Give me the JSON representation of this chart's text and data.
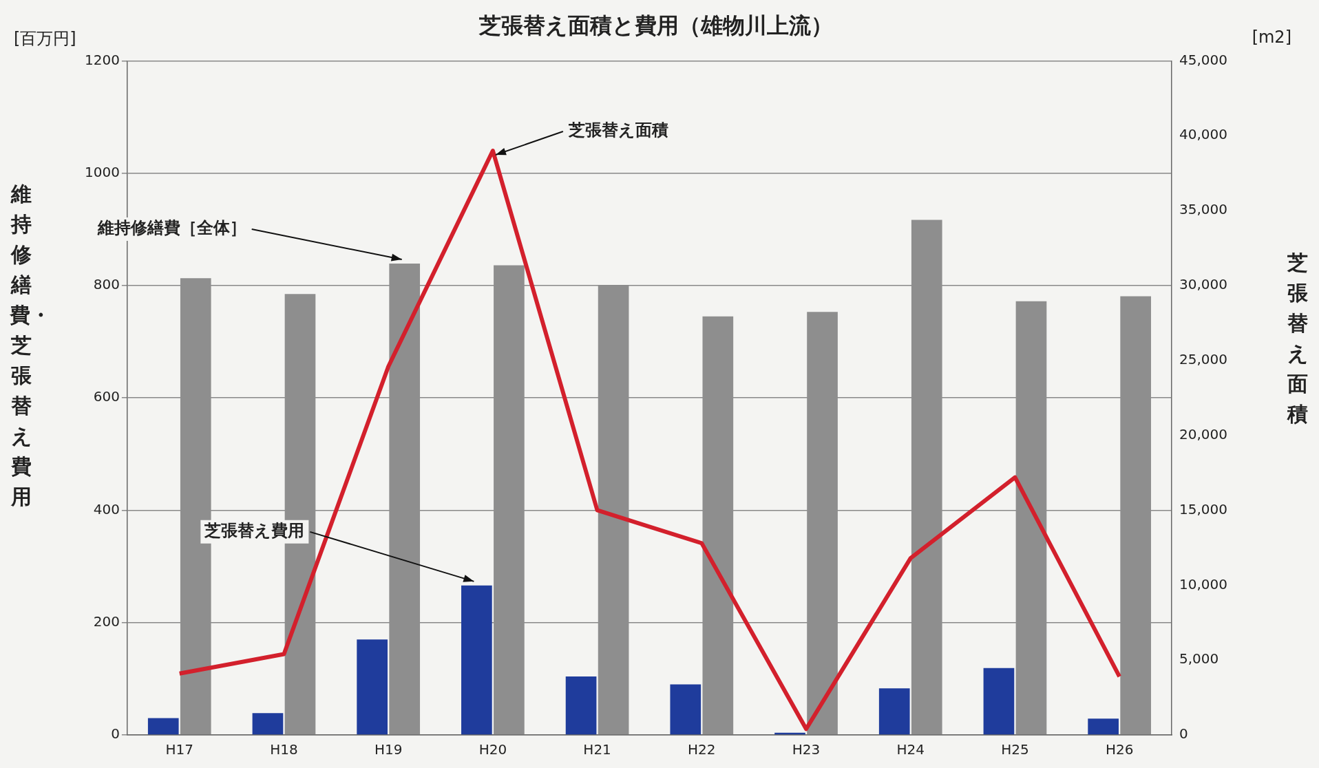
{
  "chart_data": {
    "type": "bar",
    "title": "芝張替え面積と費用（雄物川上流）",
    "ylabel": "維持修繕費・芝張替え費用",
    "y2label": "芝張替え面積",
    "categories": [
      "H17",
      "H18",
      "H19",
      "H20",
      "H21",
      "H22",
      "H23",
      "H24",
      "H25",
      "H26"
    ],
    "series": [
      {
        "name": "芝張替え費用",
        "color": "#1f3c9c",
        "values": [
          30,
          39,
          170,
          266,
          104,
          90,
          4,
          83,
          119,
          29
        ]
      },
      {
        "name": "維持修繕費［全体］",
        "color": "#8e8e8e",
        "values": [
          813,
          785,
          839,
          836,
          800,
          745,
          753,
          917,
          772,
          781
        ]
      },
      {
        "name": "芝張替え面積",
        "type": "line",
        "axis": "y2",
        "color": "#d3202c",
        "values": [
          4100,
          5400,
          24600,
          39000,
          15000,
          12800,
          400,
          11800,
          17200,
          3900
        ]
      }
    ],
    "ylim": [
      0,
      1200
    ],
    "yticks": [
      0,
      200,
      400,
      600,
      800,
      1000,
      1200
    ],
    "y2lim": [
      0,
      45000
    ],
    "y2ticks": [
      {
        "value": 0,
        "label": "0"
      },
      {
        "value": 5000,
        "label": "5,000"
      },
      {
        "value": 10000,
        "label": "10,000"
      },
      {
        "value": 15000,
        "label": "15,000"
      },
      {
        "value": 20000,
        "label": "20,000"
      },
      {
        "value": 25000,
        "label": "25,000"
      },
      {
        "value": 30000,
        "label": "30,000"
      },
      {
        "value": 35000,
        "label": "35,000"
      },
      {
        "value": 40000,
        "label": "40,000"
      },
      {
        "value": 45000,
        "label": "45,000"
      }
    ],
    "grid": "y",
    "legend": false,
    "marker": "none",
    "line_style": "solid",
    "annotations": [
      "[百万円]",
      "[m2]"
    ]
  }
}
